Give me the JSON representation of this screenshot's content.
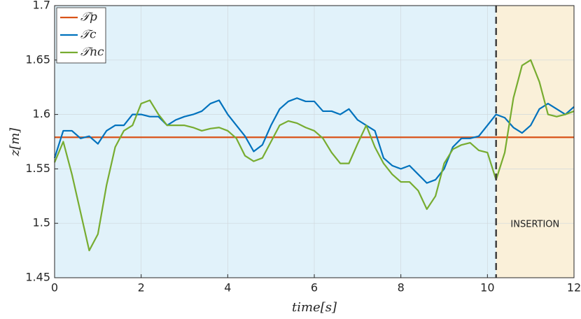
{
  "chart_data": {
    "type": "line",
    "xlabel": "time[s]",
    "ylabel": "z[m]",
    "xlim": [
      0,
      12
    ],
    "ylim": [
      1.45,
      1.7
    ],
    "xticks": [
      0,
      2,
      4,
      6,
      8,
      10,
      12
    ],
    "yticks": [
      1.45,
      1.5,
      1.55,
      1.6,
      1.65,
      1.7
    ],
    "grid": true,
    "legend": "upper left",
    "regions": [
      {
        "x": [
          0,
          10.2
        ],
        "color": "#e1f2fa"
      },
      {
        "x": [
          10.2,
          12
        ],
        "color": "#faf0d9"
      }
    ],
    "vline": {
      "x": 10.2,
      "color": "#404040"
    },
    "annotation": {
      "text": "INSERTION"
    },
    "x": [
      0,
      0.2,
      0.4,
      0.6,
      0.8,
      1,
      1.2,
      1.4,
      1.6,
      1.8,
      2,
      2.2,
      2.4,
      2.6,
      2.8,
      3,
      3.2,
      3.4,
      3.6,
      3.8,
      4,
      4.2,
      4.4,
      4.6,
      4.8,
      5,
      5.2,
      5.4,
      5.6,
      5.8,
      6,
      6.2,
      6.4,
      6.6,
      6.8,
      7,
      7.2,
      7.4,
      7.6,
      7.8,
      8,
      8.2,
      8.4,
      8.6,
      8.8,
      9,
      9.2,
      9.4,
      9.6,
      9.8,
      10,
      10.2,
      10.4,
      10.6,
      10.8,
      11,
      11.2,
      11.4,
      11.6,
      11.8,
      12
    ],
    "series": [
      {
        "name": "𝒯p",
        "color": "#d95319",
        "values": [
          1.579,
          1.579,
          1.579,
          1.579,
          1.579,
          1.579,
          1.579,
          1.579,
          1.579,
          1.579,
          1.579,
          1.579,
          1.579,
          1.579,
          1.579,
          1.579,
          1.579,
          1.579,
          1.579,
          1.579,
          1.579,
          1.579,
          1.579,
          1.579,
          1.579,
          1.579,
          1.579,
          1.579,
          1.579,
          1.579,
          1.579,
          1.579,
          1.579,
          1.579,
          1.579,
          1.579,
          1.579,
          1.579,
          1.579,
          1.579,
          1.579,
          1.579,
          1.579,
          1.579,
          1.579,
          1.579,
          1.579,
          1.579,
          1.579,
          1.579,
          1.579,
          1.579,
          1.579,
          1.579,
          1.579,
          1.579,
          1.579,
          1.579,
          1.579,
          1.579,
          1.579
        ]
      },
      {
        "name": "𝒯c",
        "color": "#0072bd",
        "values": [
          1.56,
          1.585,
          1.585,
          1.578,
          1.58,
          1.573,
          1.585,
          1.59,
          1.59,
          1.6,
          1.6,
          1.598,
          1.598,
          1.59,
          1.595,
          1.598,
          1.6,
          1.603,
          1.61,
          1.613,
          1.6,
          1.59,
          1.58,
          1.566,
          1.572,
          1.59,
          1.605,
          1.612,
          1.615,
          1.612,
          1.612,
          1.603,
          1.603,
          1.6,
          1.605,
          1.595,
          1.59,
          1.585,
          1.56,
          1.553,
          1.55,
          1.553,
          1.545,
          1.537,
          1.54,
          1.55,
          1.57,
          1.578,
          1.578,
          1.58,
          1.59,
          1.6,
          1.597,
          1.588,
          1.583,
          1.59,
          1.605,
          1.61,
          1.605,
          1.6,
          1.607
        ]
      },
      {
        "name": "𝒯nc",
        "color": "#77ac30",
        "values": [
          1.556,
          1.575,
          1.545,
          1.51,
          1.475,
          1.49,
          1.535,
          1.57,
          1.585,
          1.59,
          1.61,
          1.613,
          1.6,
          1.59,
          1.59,
          1.59,
          1.588,
          1.585,
          1.587,
          1.588,
          1.585,
          1.578,
          1.562,
          1.557,
          1.56,
          1.575,
          1.59,
          1.594,
          1.592,
          1.588,
          1.585,
          1.578,
          1.565,
          1.555,
          1.555,
          1.573,
          1.59,
          1.57,
          1.555,
          1.545,
          1.538,
          1.538,
          1.53,
          1.513,
          1.525,
          1.555,
          1.568,
          1.572,
          1.574,
          1.567,
          1.565,
          1.54,
          1.565,
          1.615,
          1.645,
          1.65,
          1.63,
          1.6,
          1.598,
          1.6,
          1.603
        ]
      }
    ]
  }
}
